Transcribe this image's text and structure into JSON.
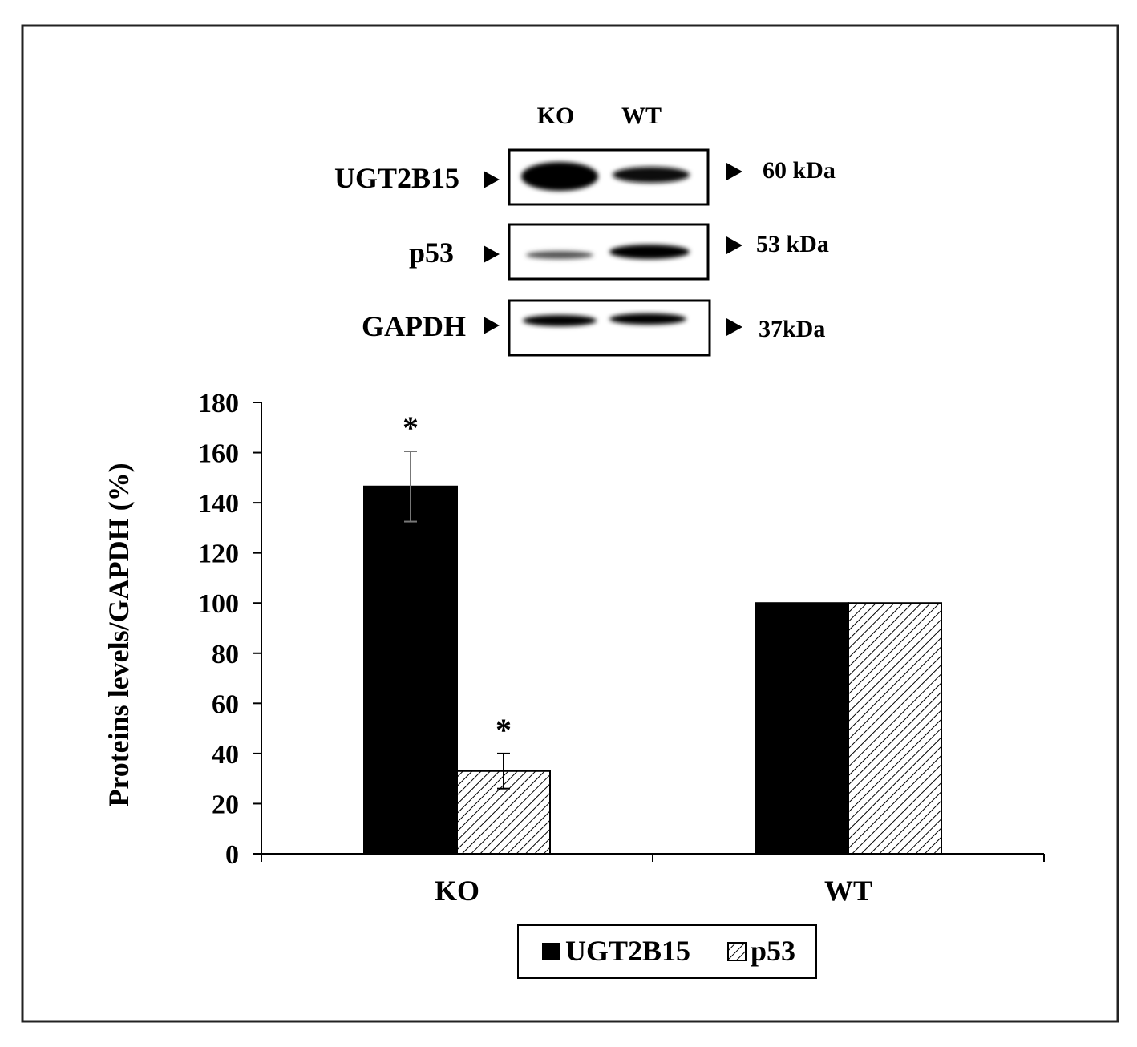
{
  "blot": {
    "lanes": [
      "KO",
      "WT"
    ],
    "rows": [
      {
        "protein": "UGT2B15",
        "marker": "60 kDa"
      },
      {
        "protein": "p53",
        "marker": "53 kDa"
      },
      {
        "protein": "GAPDH",
        "marker": "37kDa"
      }
    ]
  },
  "chart_data": {
    "type": "bar",
    "categories": [
      "KO",
      "WT"
    ],
    "series": [
      {
        "name": "UGT2B15",
        "values": [
          146.5,
          100
        ],
        "errors": [
          14,
          0
        ],
        "significance": [
          "*",
          ""
        ],
        "fill": "solid",
        "color": "#000000"
      },
      {
        "name": "p53",
        "values": [
          33,
          100
        ],
        "errors": [
          7,
          0
        ],
        "significance": [
          "*",
          ""
        ],
        "fill": "hatched",
        "color": "#000000"
      }
    ],
    "ylabel": "Proteins levels/GAPDH (%)",
    "xlabel": "",
    "ylim": [
      0,
      180
    ],
    "yticks": [
      0,
      20,
      40,
      60,
      80,
      100,
      120,
      140,
      160,
      180
    ],
    "grid": false,
    "legend": "bottom-center"
  }
}
